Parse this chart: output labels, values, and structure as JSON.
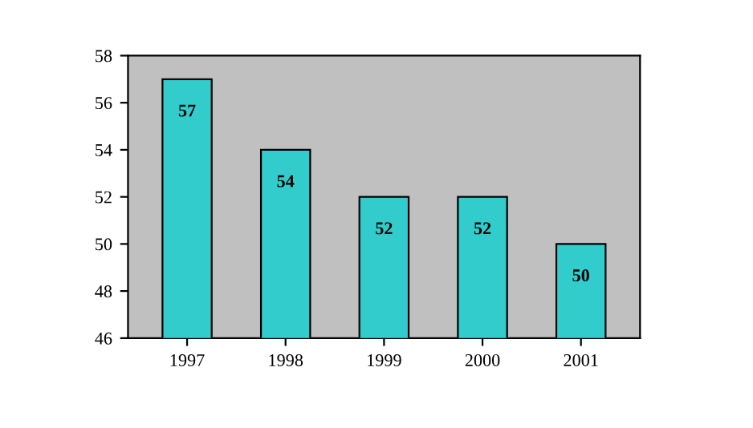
{
  "chart_data": {
    "type": "bar",
    "categories": [
      "1997",
      "1998",
      "1999",
      "2000",
      "2001"
    ],
    "values": [
      57,
      54,
      52,
      52,
      50
    ],
    "color": "#33cccc",
    "ylim": [
      46,
      58
    ],
    "yticks": [
      46,
      48,
      50,
      52,
      54,
      56,
      58
    ],
    "data_labels": true,
    "grid": false
  }
}
